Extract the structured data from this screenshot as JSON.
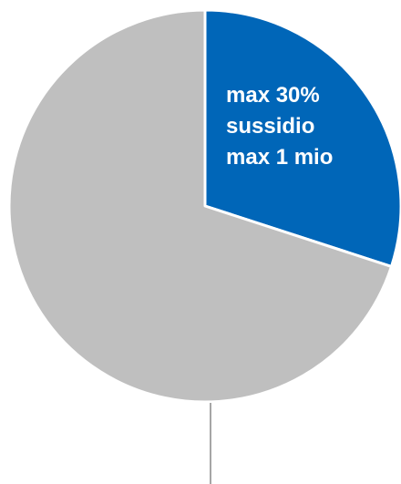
{
  "chart_data": {
    "type": "pie",
    "title": "",
    "slices": [
      {
        "value": 30,
        "label_lines": [
          "max 30%",
          "sussidio",
          "max 1 mio"
        ],
        "color": "#0066B8"
      },
      {
        "value": 70,
        "label_lines": [],
        "color": "#BFBFBF"
      }
    ],
    "start_angle_deg": 0,
    "direction": "clockwise",
    "separator_color": "#ffffff",
    "leader_line_color": "#A6A6A6",
    "legend": "none"
  }
}
